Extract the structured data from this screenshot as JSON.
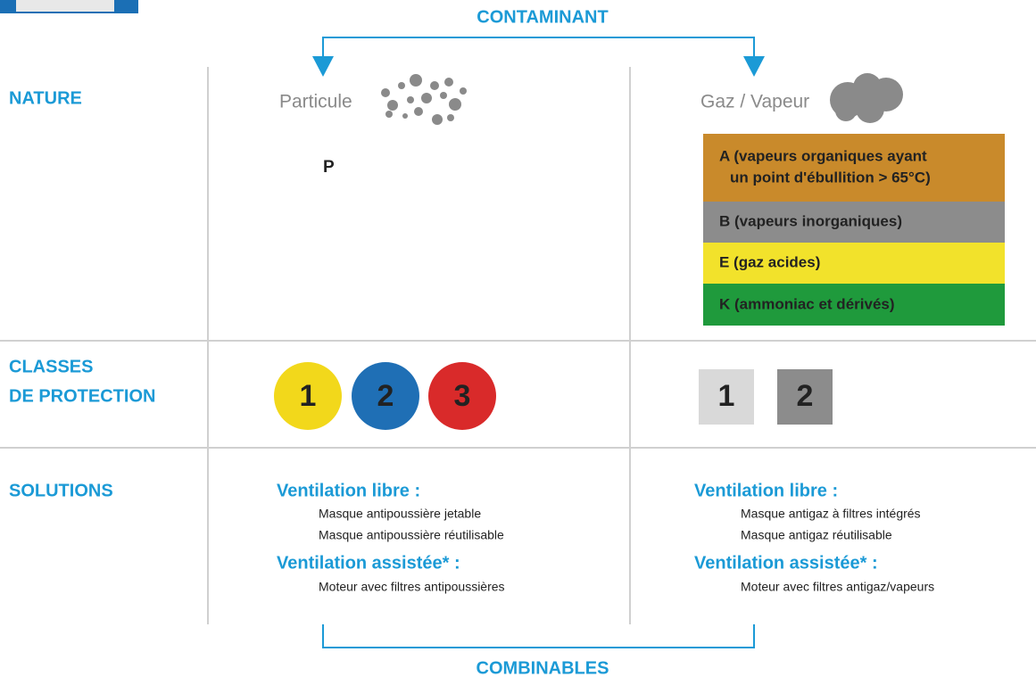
{
  "header": {
    "contaminant": "CONTAMINANT"
  },
  "nature": {
    "label": "NATURE",
    "particle": {
      "title": "Particule",
      "code": "P"
    },
    "gas": {
      "title": "Gaz / Vapeur",
      "filters": [
        {
          "lines": [
            "A (vapeurs organiques ayant",
            "un point d'ébullition > 65°C)"
          ]
        },
        {
          "lines": [
            "B (vapeurs inorganiques)"
          ]
        },
        {
          "lines": [
            "E (gaz acides)"
          ]
        },
        {
          "lines": [
            "K (ammoniac et dérivés)"
          ]
        }
      ]
    }
  },
  "classes": {
    "label": [
      "CLASSES",
      "DE PROTECTION"
    ],
    "particle": [
      1,
      2,
      3
    ],
    "gas": [
      1,
      2
    ]
  },
  "solutions": {
    "label": "SOLUTIONS",
    "particle": {
      "free": {
        "title": "Ventilation libre :",
        "items": [
          "Masque antipoussière jetable",
          "Masque antipoussière réutilisable"
        ]
      },
      "assisted": {
        "title": "Ventilation assistée* :",
        "items": [
          "Moteur avec filtres antipoussières"
        ]
      }
    },
    "gas": {
      "free": {
        "title": "Ventilation libre :",
        "items": [
          "Masque antigaz à filtres intégrés",
          "Masque antigaz réutilisable"
        ]
      },
      "assisted": {
        "title": "Ventilation assistée* :",
        "items": [
          "Moteur avec filtres antigaz/vapeurs"
        ]
      }
    }
  },
  "footer": {
    "combinables": "COMBINABLES"
  }
}
